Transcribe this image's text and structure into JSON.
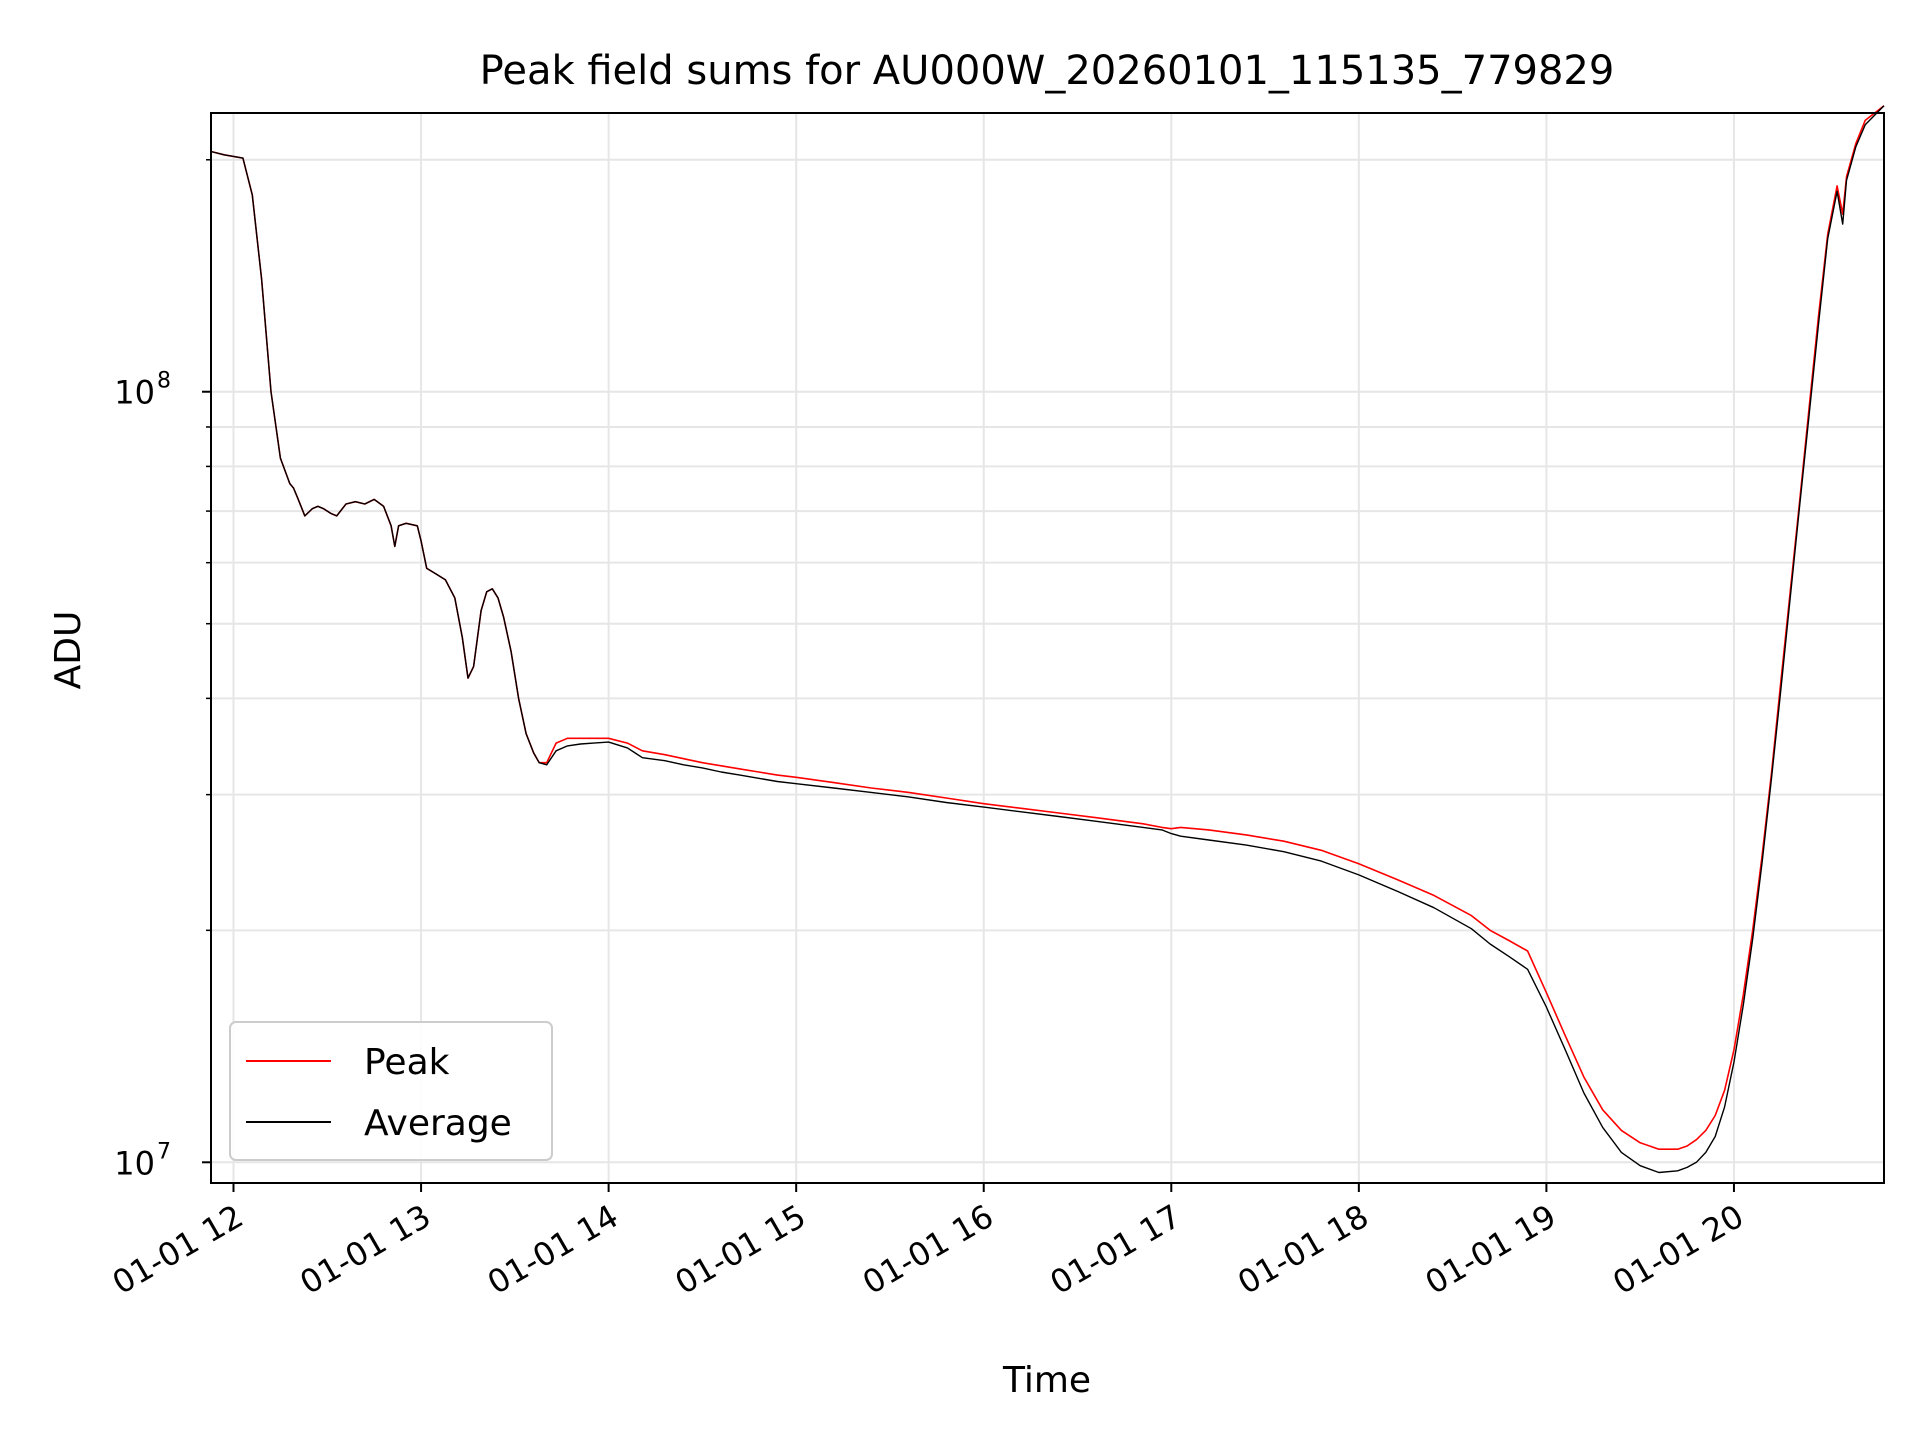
{
  "chart_data": {
    "type": "line",
    "title": "Peak field sums for AU000W_20260101_115135_779829",
    "xlabel": "Time",
    "ylabel": "ADU",
    "yscale": "log",
    "grid": true,
    "legend_position": "lower-left",
    "x_unit": "hours",
    "xlim": [
      11.88,
      20.8
    ],
    "ylim": [
      9400000.0,
      230000000.0
    ],
    "x_ticks": [
      12,
      13,
      14,
      15,
      16,
      17,
      18,
      19,
      20
    ],
    "x_tick_labels": [
      "01-01 12",
      "01-01 13",
      "01-01 14",
      "01-01 15",
      "01-01 16",
      "01-01 17",
      "01-01 18",
      "01-01 19",
      "01-01 20"
    ],
    "y_major_ticks": [
      10000000,
      100000000
    ],
    "y_tick_labels": [
      {
        "base": "10",
        "exp": "7"
      },
      {
        "base": "10",
        "exp": "8"
      }
    ],
    "series": [
      {
        "name": "Peak",
        "color": "#ff0000",
        "x": [
          11.88,
          11.95,
          12.0,
          12.05,
          12.1,
          12.15,
          12.2,
          12.25,
          12.3,
          12.32,
          12.34,
          12.36,
          12.38,
          12.42,
          12.45,
          12.48,
          12.52,
          12.55,
          12.6,
          12.65,
          12.7,
          12.75,
          12.8,
          12.84,
          12.86,
          12.88,
          12.92,
          12.98,
          13.0,
          13.03,
          13.08,
          13.13,
          13.18,
          13.22,
          13.25,
          13.28,
          13.32,
          13.35,
          13.38,
          13.41,
          13.44,
          13.48,
          13.52,
          13.56,
          13.6,
          13.63,
          13.67,
          13.72,
          13.78,
          13.85,
          13.92,
          14.0,
          14.1,
          14.18,
          14.3,
          14.4,
          14.5,
          14.6,
          14.7,
          14.8,
          14.9,
          15.0,
          15.2,
          15.4,
          15.6,
          15.8,
          16.0,
          16.2,
          16.4,
          16.6,
          16.85,
          16.95,
          17.0,
          17.05,
          17.2,
          17.4,
          17.6,
          17.8,
          18.0,
          18.2,
          18.4,
          18.6,
          18.7,
          18.8,
          18.9,
          19.0,
          19.1,
          19.2,
          19.3,
          19.4,
          19.5,
          19.6,
          19.7,
          19.75,
          19.8,
          19.85,
          19.9,
          19.95,
          20.0,
          20.05,
          20.1,
          20.15,
          20.2,
          20.25,
          20.3,
          20.35,
          20.4,
          20.45,
          20.5,
          20.55,
          20.58,
          20.6,
          20.65,
          20.7,
          20.8
        ],
        "values": [
          205000000,
          203000000,
          202000000,
          201000000,
          180000000,
          140000000,
          100000000,
          82000000,
          76000000,
          75000000,
          73000000,
          71000000,
          69000000,
          70500000,
          71000000,
          70500000,
          69500000,
          69000000,
          71500000,
          72000000,
          71500000,
          72500000,
          71000000,
          67000000,
          63000000,
          67000000,
          67500000,
          67000000,
          64000000,
          59000000,
          58000000,
          57000000,
          54000000,
          48000000,
          42500000,
          44000000,
          52000000,
          55000000,
          55500000,
          54000000,
          51000000,
          46000000,
          40000000,
          36000000,
          34000000,
          33000000,
          33000000,
          35000000,
          35500000,
          35500000,
          35500000,
          35500000,
          35000000,
          34200000,
          33800000,
          33400000,
          33000000,
          32700000,
          32400000,
          32100000,
          31800000,
          31600000,
          31100000,
          30600000,
          30200000,
          29700000,
          29200000,
          28800000,
          28400000,
          28000000,
          27500000,
          27200000,
          27100000,
          27200000,
          27000000,
          26600000,
          26100000,
          25400000,
          24400000,
          23300000,
          22200000,
          20900000,
          20000000,
          19400000,
          18800000,
          16600000,
          14600000,
          12900000,
          11700000,
          11000000,
          10600000,
          10400000,
          10400000,
          10500000,
          10700000,
          11000000,
          11500000,
          12400000,
          14000000,
          16500000,
          20000000,
          25000000,
          32000000,
          42000000,
          55000000,
          72000000,
          95000000,
          125000000,
          160000000,
          185000000,
          170000000,
          190000000,
          210000000,
          225000000,
          235000000
        ]
      },
      {
        "name": "Average",
        "color": "#000000",
        "x": [
          11.88,
          11.95,
          12.0,
          12.05,
          12.1,
          12.15,
          12.2,
          12.25,
          12.3,
          12.32,
          12.34,
          12.36,
          12.38,
          12.42,
          12.45,
          12.48,
          12.52,
          12.55,
          12.6,
          12.65,
          12.7,
          12.75,
          12.8,
          12.84,
          12.86,
          12.88,
          12.92,
          12.98,
          13.0,
          13.03,
          13.08,
          13.13,
          13.18,
          13.22,
          13.25,
          13.28,
          13.32,
          13.35,
          13.38,
          13.41,
          13.44,
          13.48,
          13.52,
          13.56,
          13.6,
          13.63,
          13.67,
          13.72,
          13.78,
          13.85,
          13.92,
          14.0,
          14.1,
          14.18,
          14.3,
          14.4,
          14.5,
          14.6,
          14.7,
          14.8,
          14.9,
          15.0,
          15.2,
          15.4,
          15.6,
          15.8,
          16.0,
          16.2,
          16.4,
          16.6,
          16.85,
          16.95,
          17.0,
          17.05,
          17.2,
          17.4,
          17.6,
          17.8,
          18.0,
          18.2,
          18.4,
          18.6,
          18.7,
          18.8,
          18.9,
          19.0,
          19.1,
          19.2,
          19.3,
          19.4,
          19.5,
          19.6,
          19.7,
          19.75,
          19.8,
          19.85,
          19.9,
          19.95,
          20.0,
          20.05,
          20.1,
          20.15,
          20.2,
          20.25,
          20.3,
          20.35,
          20.4,
          20.45,
          20.5,
          20.55,
          20.58,
          20.6,
          20.65,
          20.7,
          20.8
        ],
        "values": [
          205000000,
          203000000,
          202000000,
          201000000,
          180000000,
          140000000,
          100000000,
          82000000,
          76000000,
          75000000,
          73000000,
          71000000,
          69000000,
          70500000,
          71000000,
          70500000,
          69500000,
          69000000,
          71500000,
          72000000,
          71500000,
          72500000,
          71000000,
          67000000,
          63000000,
          67000000,
          67500000,
          67000000,
          64000000,
          59000000,
          58000000,
          57000000,
          54000000,
          48000000,
          42500000,
          44000000,
          52000000,
          55000000,
          55500000,
          54000000,
          51000000,
          46000000,
          40000000,
          36000000,
          34000000,
          33000000,
          32800000,
          34200000,
          34700000,
          34900000,
          35000000,
          35100000,
          34500000,
          33500000,
          33200000,
          32800000,
          32500000,
          32100000,
          31800000,
          31500000,
          31200000,
          31000000,
          30600000,
          30200000,
          29800000,
          29300000,
          28900000,
          28500000,
          28100000,
          27700000,
          27200000,
          27000000,
          26700000,
          26500000,
          26200000,
          25800000,
          25300000,
          24600000,
          23600000,
          22500000,
          21400000,
          20100000,
          19200000,
          18500000,
          17800000,
          15900000,
          14000000,
          12300000,
          11100000,
          10300000,
          9900000,
          9700000,
          9750000,
          9850000,
          10000000,
          10300000,
          10800000,
          11800000,
          13500000,
          16000000,
          19500000,
          24500000,
          31500000,
          41000000,
          54000000,
          71000000,
          93000000,
          122000000,
          158000000,
          182000000,
          165000000,
          188000000,
          208000000,
          222000000,
          235000000
        ]
      }
    ]
  }
}
